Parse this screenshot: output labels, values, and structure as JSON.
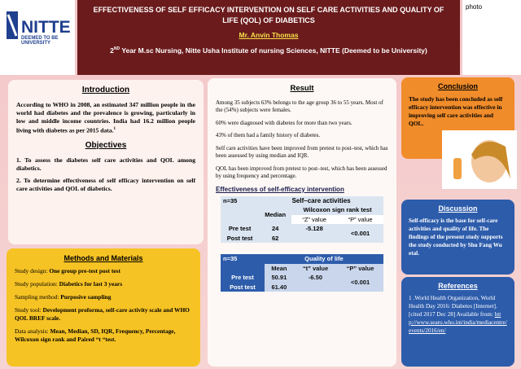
{
  "header": {
    "title": "EFFECTIVENESS OF SELF EFFICACY INTERVENTION ON SELF CARE ACTIVITIES AND QUALITY OF LIFE (QOL) OF DIABETICS",
    "author": "Mr. Anvin Thomas",
    "affiliation": {
      "year": "2",
      "sup": "ND",
      "rest": "Year M.sc Nursing, Nitte Usha Institute of nursing Sciences, NITTE (Deemed to be University)"
    }
  },
  "logo": {
    "name": "NITTE",
    "line1": "DEEMED TO BE",
    "line2": "UNIVERSITY"
  },
  "photo_label": "photo",
  "introduction": {
    "heading": "Introduction",
    "text": "According to WHO in 2008, an estimated 347 million people in the world had diabetes and the prevalence is growing, particularly in low and middle income countries. India had 16.2 million people living with diabetes as per 2015 data.",
    "sup": "1"
  },
  "objectives": {
    "heading": "Objectives",
    "items": [
      "1. To assess the diabetes self care activities and QOL among diabetics.",
      "2. To determine effectiveness of self efficacy intervention on self care activities and QOL of diabetics."
    ]
  },
  "methods": {
    "heading": "Methods and Materials",
    "items": [
      {
        "label": "Study design:",
        "text": "One group pre-test post test"
      },
      {
        "label": "Study population:",
        "text": "Diabetics for last 3 years"
      },
      {
        "label": "Sampling method:",
        "text": "Purposive sampling"
      },
      {
        "label": "Study tool:",
        "text": "Development proforma, self-care activity scale and WHO QOL BREF scale."
      },
      {
        "label": "Data analysis:",
        "text": "Mean, Median, SD, IQR, Frequency, Percentage, Wilcoxon sign rank and Paired “t “test."
      }
    ]
  },
  "result": {
    "heading": "Result",
    "paragraphs": [
      "Among 35 subjects 63% belongs to the age group 36 to 55 years. Most of the (54%) subjects were females.",
      "60% were diagnosed with diabetes for more than two years.",
      "43% of them had a family history of diabetes.",
      "Self care activities have been improved from pretest to post–test, which has been assessed by using median and IQR.",
      "QOL has been improved from pretest to post–test, which has been assessed by using frequency and percentage."
    ],
    "subheading": "Effectiveness of self-efficacy intervention",
    "table1": {
      "n": "n=35",
      "group": "Self–care activities",
      "median": "Median",
      "test": "Wilcoxon sign rank test",
      "z": "“Z” value",
      "p": "“P” value",
      "rows": [
        [
          "Pre test",
          "24",
          "-5.128"
        ],
        [
          "Post test",
          "62"
        ]
      ],
      "p_value": "<0.001"
    },
    "table2": {
      "n": "n=35",
      "group": "Quality of life",
      "mean": "Mean",
      "t": "“t” value",
      "p": "“P” value",
      "rows": [
        [
          "Pre test",
          "50.91",
          "-6.50"
        ],
        [
          "Post test",
          "61.40"
        ]
      ],
      "p_value": "<0.001"
    }
  },
  "conclusion": {
    "heading": "Conclusion",
    "text": "The study has been concluded as self efficacy intervention was effective in improving self care activities and QOL."
  },
  "discussion": {
    "heading": "Discussion",
    "text": "Self-efficacy is the base for self-care activities and quality of life. The findings of the present study supports the study conducted by Shu Fang Wu etal."
  },
  "references": {
    "heading": "References",
    "text": "1 .World Health Organization, World Health Day 2016: Diabetes [Internet]. [cited 2017 Dec 28] Available from:",
    "link": "http://www.searo.who.int/india/mediacentre/events/2016/en/"
  }
}
